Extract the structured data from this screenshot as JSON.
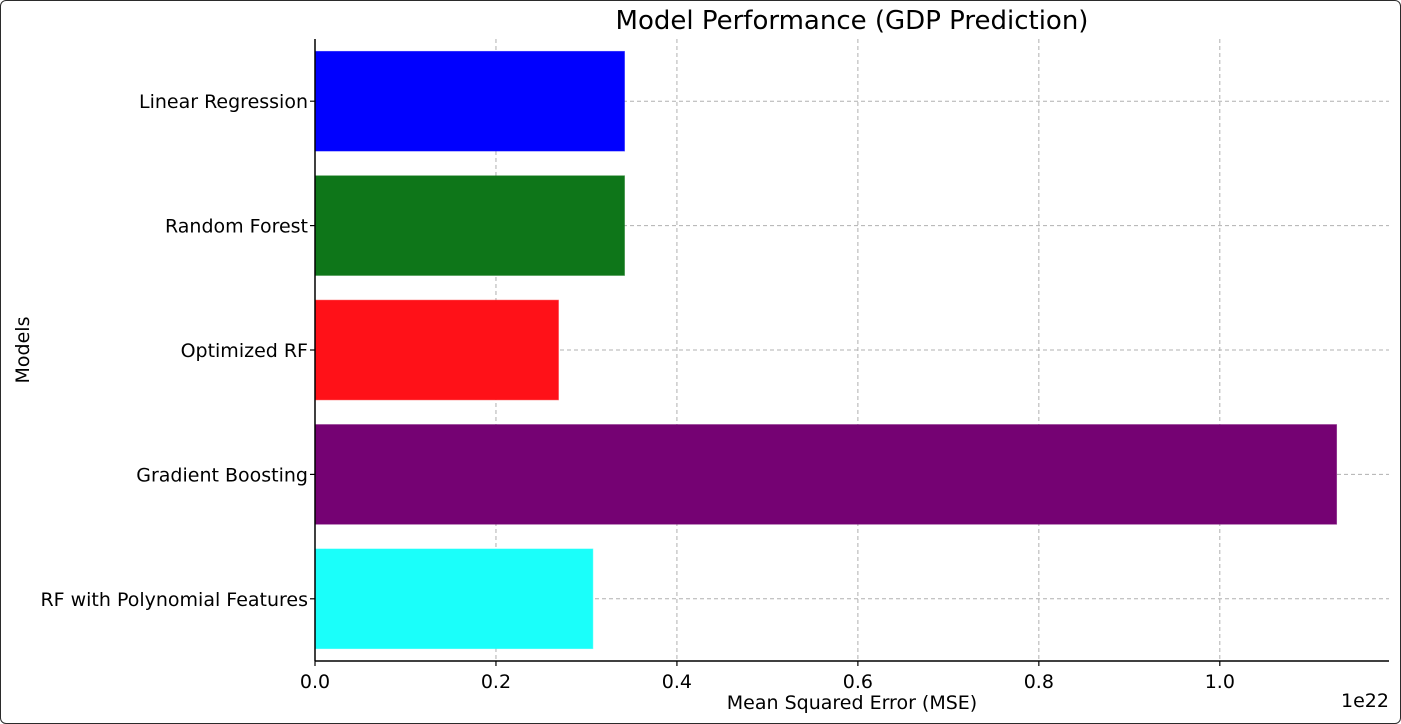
{
  "chart_data": {
    "type": "bar",
    "orientation": "horizontal",
    "title": "Model Performance (GDP Prediction)",
    "xlabel": "Mean Squared Error (MSE)",
    "ylabel": "Models",
    "x_offset_text": "1e22",
    "xlim": [
      0,
      1.187
    ],
    "xticks": [
      0.0,
      0.2,
      0.4,
      0.6,
      0.8,
      1.0
    ],
    "xtick_labels": [
      "0.0",
      "0.2",
      "0.4",
      "0.6",
      "0.8",
      "1.0"
    ],
    "categories": [
      "Linear Regression",
      "Random Forest",
      "Optimized RF",
      "Gradient Boosting",
      "RF with Polynomial Features"
    ],
    "values": [
      0.342,
      0.342,
      0.269,
      1.129,
      0.307
    ],
    "colors": [
      "#0000ff",
      "#0e7619",
      "#ff1118",
      "#750273",
      "#1afffa"
    ],
    "grid": true,
    "legend": "none"
  }
}
